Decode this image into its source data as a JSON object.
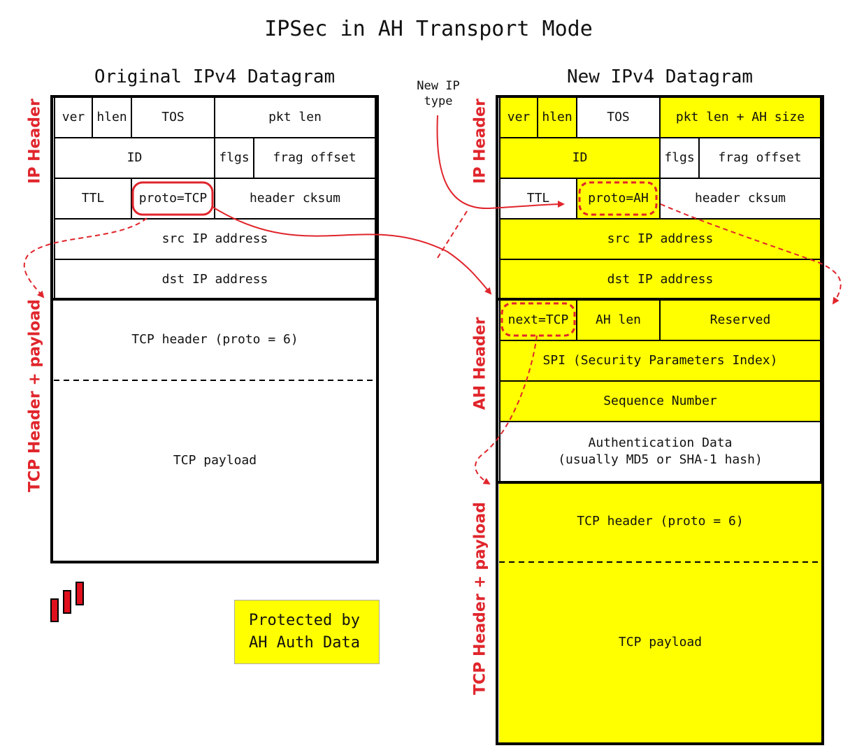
{
  "title": "IPSec in AH Transport Mode",
  "original": {
    "title": "Original IPv4 Datagram",
    "ver": "ver",
    "hlen": "hlen",
    "tos": "TOS",
    "pkt_len": "pkt len",
    "id": "ID",
    "flgs": "flgs",
    "frag_offset": "frag offset",
    "ttl": "TTL",
    "proto": "proto=TCP",
    "header_cksum": "header cksum",
    "src": "src IP address",
    "dst": "dst IP address",
    "tcp_header": "TCP header (proto = 6)",
    "tcp_payload": "TCP payload",
    "side_ip": "IP Header",
    "side_tcp": "TCP Header + payload"
  },
  "new": {
    "title": "New IPv4 Datagram",
    "ver": "ver",
    "hlen": "hlen",
    "tos": "TOS",
    "pkt_len": "pkt len + AH size",
    "id": "ID",
    "flgs": "flgs",
    "frag_offset": "frag offset",
    "ttl": "TTL",
    "proto": "proto=AH",
    "header_cksum": "header cksum",
    "src": "src IP address",
    "dst": "dst IP address",
    "next": "next=TCP",
    "ah_len": "AH len",
    "reserved": "Reserved",
    "spi": "SPI (Security Parameters Index)",
    "seq": "Sequence Number",
    "auth_line1": "Authentication Data",
    "auth_line2": "(usually MD5 or SHA-1 hash)",
    "tcp_header": "TCP header (proto = 6)",
    "tcp_payload": "TCP payload",
    "side_ip": "IP Header",
    "side_ah": "AH Header",
    "side_tcp": "TCP Header + payload"
  },
  "annotation": {
    "line1": "New IP",
    "line2": "type"
  },
  "legend": {
    "line1": "Protected by",
    "line2": "AH Auth Data"
  },
  "colors": {
    "highlight": "#ffff00",
    "accent": "#e0252c"
  },
  "logo_icon": "bar-logo-icon"
}
